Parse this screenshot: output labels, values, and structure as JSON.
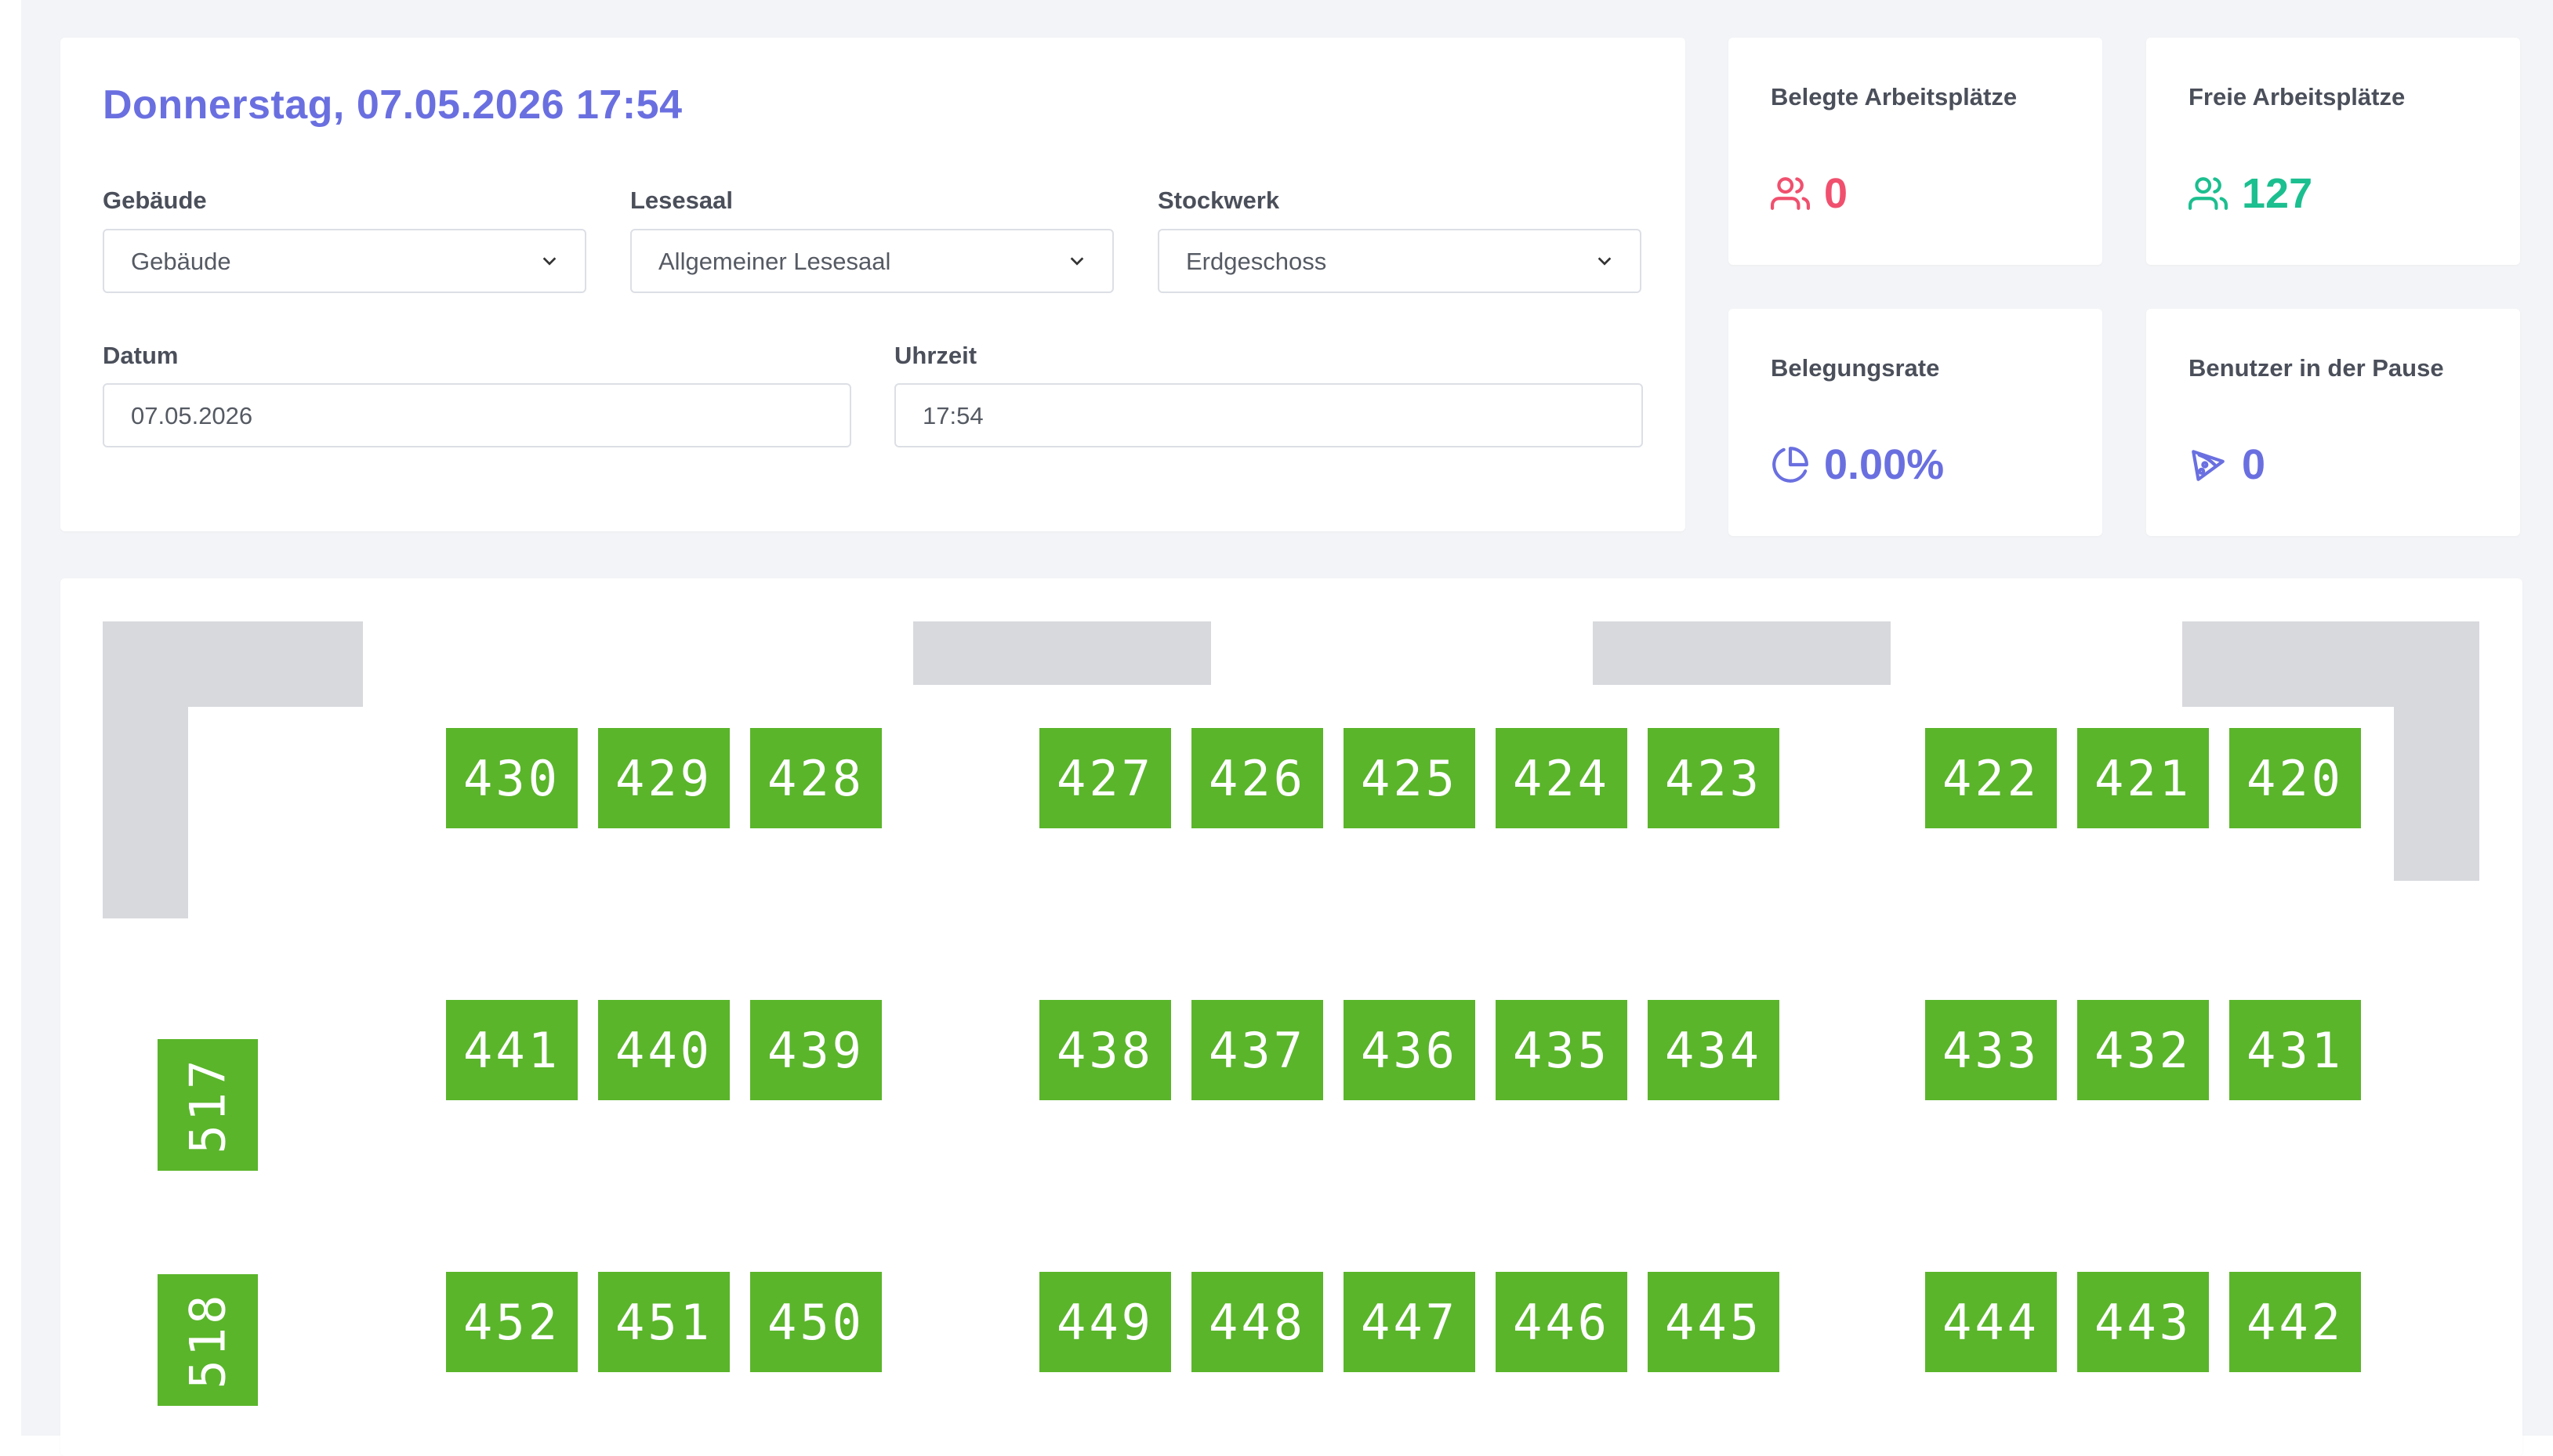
{
  "header": {
    "datetime": "Donnerstag, 07.05.2026 17:54"
  },
  "filters": {
    "building": {
      "label": "Gebäude",
      "value": "Gebäude"
    },
    "reading_room": {
      "label": "Lesesaal",
      "value": "Allgemeiner Lesesaal"
    },
    "floor": {
      "label": "Stockwerk",
      "value": "Erdgeschoss"
    },
    "date": {
      "label": "Datum",
      "value": "07.05.2026"
    },
    "time": {
      "label": "Uhrzeit",
      "value": "17:54"
    }
  },
  "stats": {
    "occupied": {
      "title": "Belegte Arbeitsplätze",
      "value": "0",
      "color": "#f0506e",
      "icon": "users-icon"
    },
    "free": {
      "title": "Freie Arbeitsplätze",
      "value": "127",
      "color": "#1cbf8f",
      "icon": "users-icon"
    },
    "rate": {
      "title": "Belegungsrate",
      "value": "0.00%",
      "color": "#6a6fe0",
      "icon": "pie-chart-icon"
    },
    "pause": {
      "title": "Benutzer in der Pause",
      "value": "0",
      "color": "#6a6fe0",
      "icon": "pizza-icon"
    }
  },
  "seat_colors": {
    "free": "#5ab52a",
    "wall": "#d8d9dd"
  },
  "seats": {
    "row1": [
      "430",
      "429",
      "428",
      "427",
      "426",
      "425",
      "424",
      "423",
      "422",
      "421",
      "420"
    ],
    "row2": [
      "441",
      "440",
      "439",
      "438",
      "437",
      "436",
      "435",
      "434",
      "433",
      "432",
      "431"
    ],
    "row3": [
      "452",
      "451",
      "450",
      "449",
      "448",
      "447",
      "446",
      "445",
      "444",
      "443",
      "442"
    ],
    "side": [
      "517",
      "518"
    ]
  }
}
